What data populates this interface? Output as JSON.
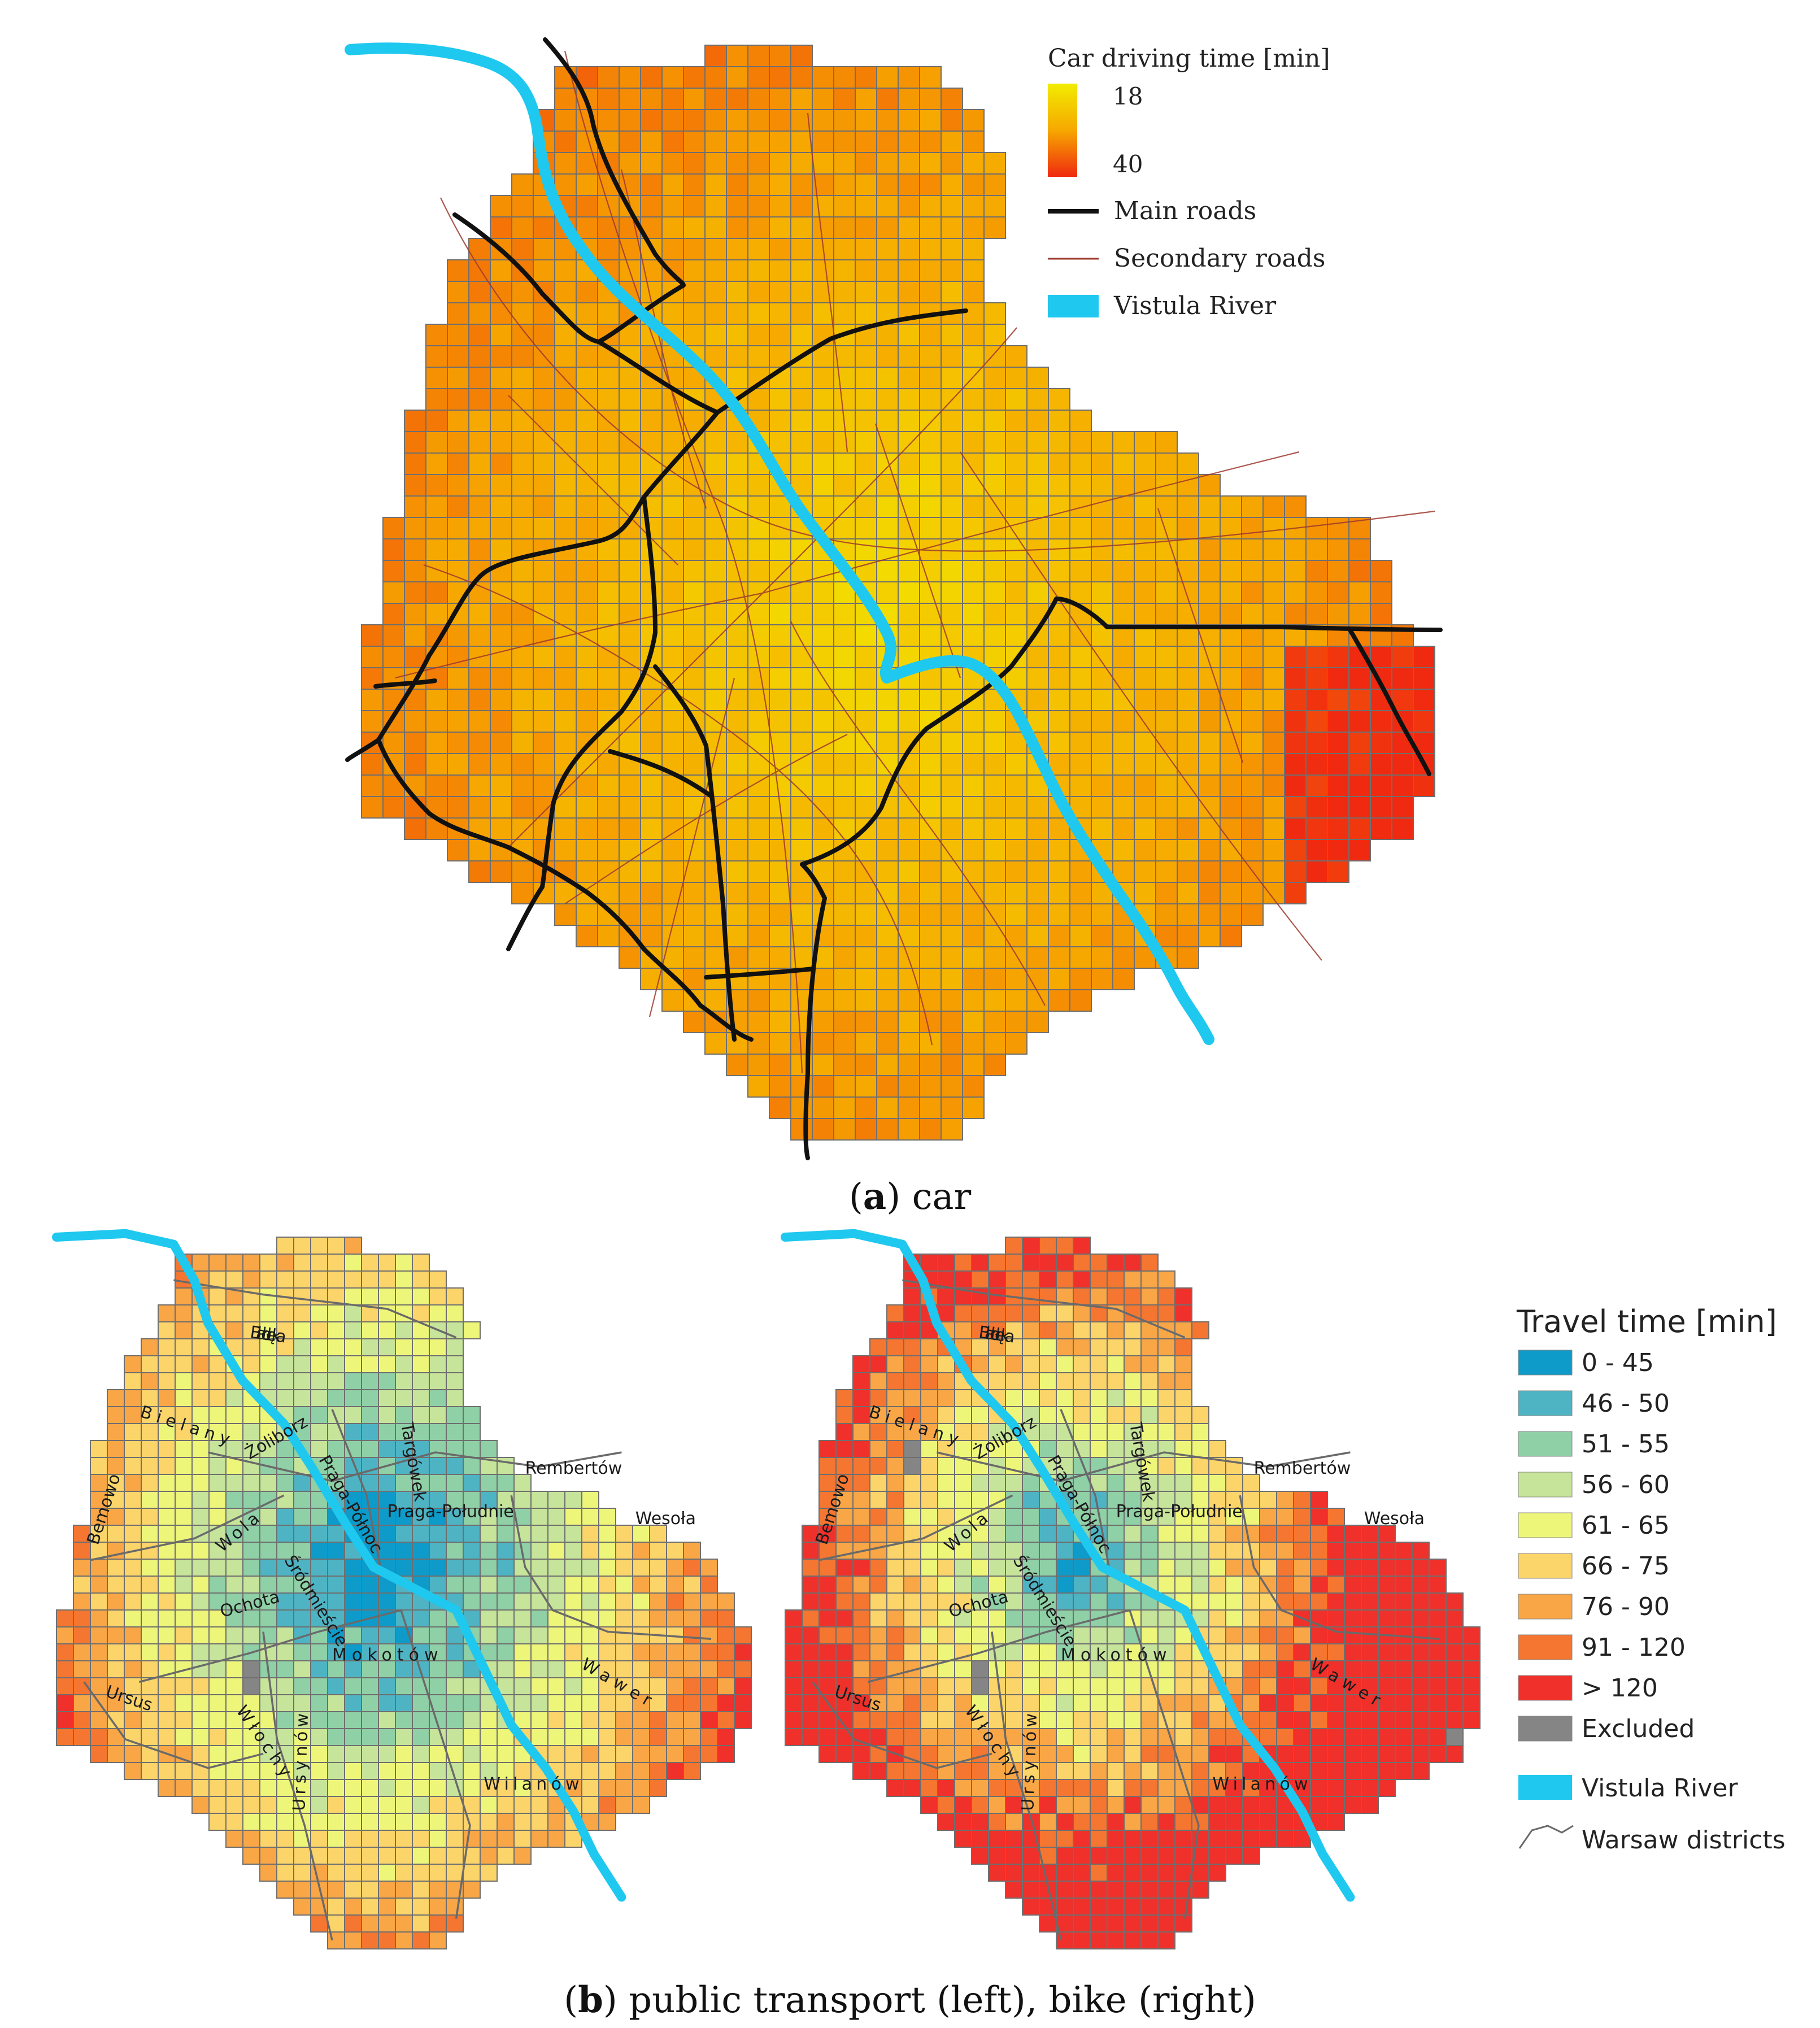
{
  "panel_a": {
    "caption_letter": "a",
    "caption_text": "car",
    "legend": {
      "title": "Car driving time [min]",
      "gradient_min": "18",
      "gradient_max": "40",
      "gradient_colors": [
        "#f2ec00",
        "#f6a800",
        "#f02a10"
      ],
      "main_roads": "Main roads",
      "secondary_roads": "Secondary roads",
      "river": "Vistula River"
    }
  },
  "panel_b": {
    "caption_letter": "b",
    "caption_text": "public transport (left), bike (right)",
    "legend": {
      "title": "Travel time [min]",
      "classes": [
        {
          "label": "0 - 45",
          "color": "#0e9bc9"
        },
        {
          "label": "46 - 50",
          "color": "#4eb4c4"
        },
        {
          "label": "51 - 55",
          "color": "#8fd0a6"
        },
        {
          "label": "56 - 60",
          "color": "#c6e49a"
        },
        {
          "label": "61 - 65",
          "color": "#eef67a"
        },
        {
          "label": "66 - 75",
          "color": "#fbd46a"
        },
        {
          "label": "76 - 90",
          "color": "#f8a646"
        },
        {
          "label": "91 - 120",
          "color": "#f47630"
        },
        {
          "label": "> 120",
          "color": "#f0302a"
        },
        {
          "label": "Excluded",
          "color": "#858585"
        }
      ],
      "river": "Vistula River",
      "districts": "Warsaw districts"
    },
    "district_labels": [
      "Białołęka",
      "Bielany",
      "Żoliborz",
      "Praga-Północ",
      "Targówek",
      "Rembertów",
      "Bemowo",
      "Wola",
      "Śródmieście",
      "Praga-Południe",
      "Wesoła",
      "Ochota",
      "Mokotów",
      "Wawer",
      "Ursus",
      "Włochy",
      "Wilanów",
      "Ursynów"
    ]
  },
  "colors": {
    "river": "#1fc8ee",
    "grid_line": "#6f6f6f",
    "main_road": "#111111",
    "secondary_road": "#9e3a2e",
    "district_line": "#6a6a6a"
  }
}
